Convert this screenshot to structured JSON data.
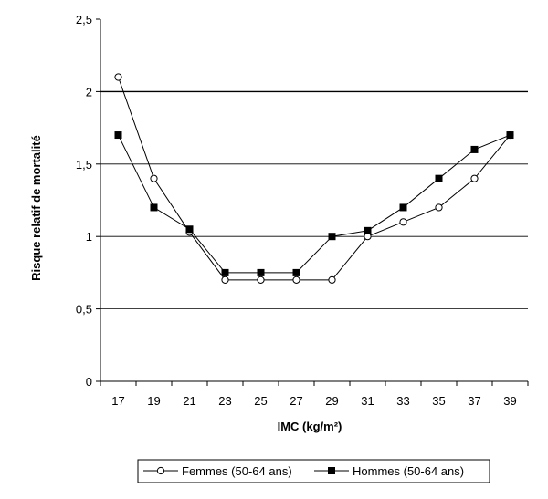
{
  "chart_data": {
    "type": "line",
    "xlabel": "IMC (kg/m²)",
    "ylabel": "Risque relatif de mortalité",
    "x": [
      17,
      19,
      21,
      23,
      25,
      27,
      29,
      31,
      33,
      35,
      37,
      39
    ],
    "x_tick_labels": [
      "17",
      "19",
      "21",
      "23",
      "25",
      "27",
      "29",
      "31",
      "33",
      "35",
      "37",
      "39"
    ],
    "ylim": [
      0,
      2.5
    ],
    "y_tick_values": [
      0,
      0.5,
      1,
      1.5,
      2,
      2.5
    ],
    "y_tick_labels": [
      "0",
      "0,5",
      "1",
      "1,5",
      "2",
      "2,5"
    ],
    "grid": "horizontal",
    "legend_position": "bottom",
    "series": [
      {
        "name": "Femmes (50-64 ans)",
        "marker": "open-circle",
        "color": "#000000",
        "values": [
          2.1,
          1.4,
          1.03,
          0.7,
          0.7,
          0.7,
          0.7,
          1.0,
          1.1,
          1.2,
          1.4,
          1.7
        ]
      },
      {
        "name": "Hommes (50-64 ans)",
        "marker": "filled-square",
        "color": "#000000",
        "values": [
          1.7,
          1.2,
          1.05,
          0.75,
          0.75,
          0.75,
          1.0,
          1.04,
          1.2,
          1.4,
          1.6,
          1.7
        ]
      }
    ]
  }
}
